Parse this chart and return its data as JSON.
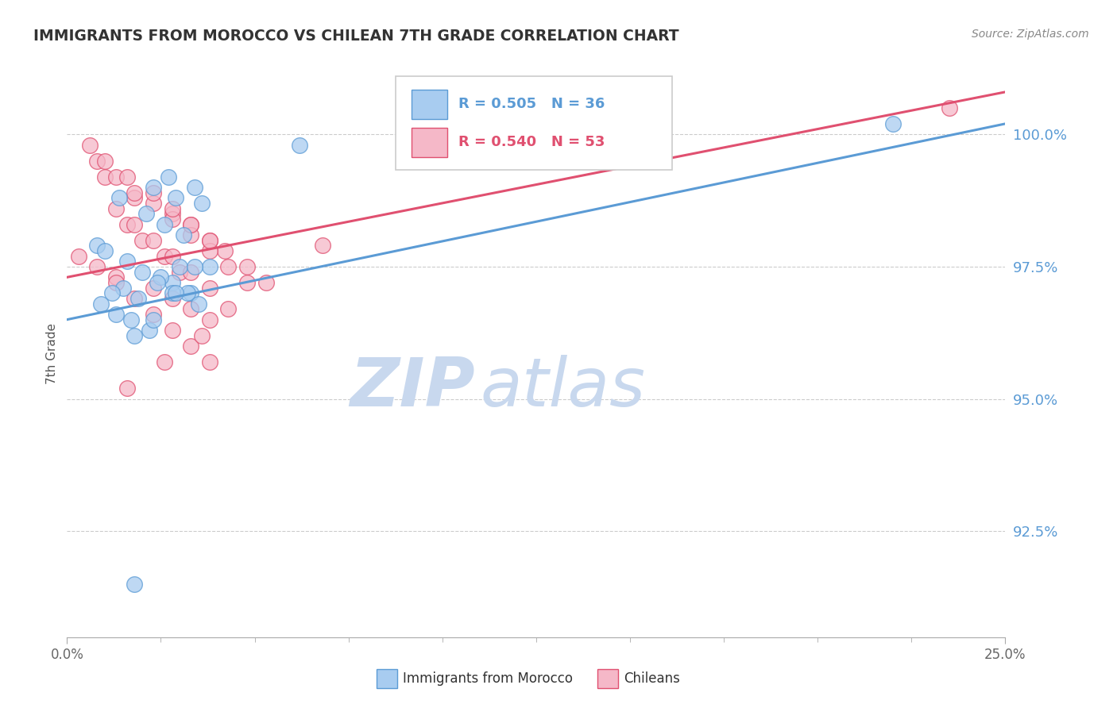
{
  "title": "IMMIGRANTS FROM MOROCCO VS CHILEAN 7TH GRADE CORRELATION CHART",
  "source": "Source: ZipAtlas.com",
  "ylabel": "7th Grade",
  "xlim": [
    0.0,
    25.0
  ],
  "ylim": [
    90.5,
    101.2
  ],
  "x_ticks": [
    0.0,
    25.0
  ],
  "x_tick_labels": [
    "0.0%",
    "25.0%"
  ],
  "y_ticks": [
    92.5,
    95.0,
    97.5,
    100.0
  ],
  "y_tick_labels": [
    "92.5%",
    "95.0%",
    "97.5%",
    "100.0%"
  ],
  "legend1_label": "R = 0.505   N = 36",
  "legend2_label": "R = 0.540   N = 53",
  "legend1_fill": "#A8CCF0",
  "legend2_fill": "#F5B8C8",
  "line1_color": "#5B9BD5",
  "line2_color": "#E05070",
  "watermark_zip": "ZIP",
  "watermark_atlas": "atlas",
  "watermark_color": "#C8D8EE",
  "grid_color": "#CCCCCC",
  "title_color": "#333333",
  "source_color": "#888888",
  "tick_color_y": "#5B9BD5",
  "tick_color_x": "#666666",
  "morocco_x": [
    1.4,
    2.7,
    2.3,
    2.9,
    3.4,
    3.6,
    2.1,
    2.6,
    3.1,
    0.8,
    1.0,
    1.6,
    2.0,
    2.8,
    3.3,
    2.5,
    3.0,
    1.5,
    1.2,
    1.9,
    2.4,
    3.2,
    0.9,
    1.3,
    1.7,
    2.2,
    2.8,
    3.5,
    3.8,
    1.8,
    2.3,
    2.9,
    3.4,
    6.2,
    22.0,
    1.8
  ],
  "morocco_y": [
    98.8,
    99.2,
    99.0,
    98.8,
    99.0,
    98.7,
    98.5,
    98.3,
    98.1,
    97.9,
    97.8,
    97.6,
    97.4,
    97.2,
    97.0,
    97.3,
    97.5,
    97.1,
    97.0,
    96.9,
    97.2,
    97.0,
    96.8,
    96.6,
    96.5,
    96.3,
    97.0,
    96.8,
    97.5,
    96.2,
    96.5,
    97.0,
    97.5,
    99.8,
    100.2,
    91.5
  ],
  "chilean_x": [
    1.0,
    1.8,
    2.8,
    3.3,
    3.8,
    4.2,
    4.8,
    1.3,
    2.3,
    2.8,
    3.3,
    3.8,
    0.8,
    1.3,
    1.8,
    2.3,
    2.8,
    3.3,
    3.8,
    4.3,
    4.8,
    1.6,
    2.0,
    2.6,
    3.0,
    0.6,
    1.0,
    1.6,
    2.3,
    2.8,
    3.3,
    3.8,
    1.3,
    1.8,
    2.3,
    2.8,
    3.3,
    3.8,
    0.8,
    1.3,
    1.8,
    2.3,
    2.8,
    3.3,
    3.8,
    6.8,
    5.3,
    4.3,
    3.6,
    2.6,
    1.6,
    0.3,
    23.5
  ],
  "chilean_y": [
    99.2,
    98.8,
    98.5,
    98.3,
    98.0,
    97.8,
    97.5,
    97.3,
    97.1,
    96.9,
    96.7,
    96.5,
    99.5,
    99.2,
    98.9,
    98.7,
    98.4,
    98.1,
    97.8,
    97.5,
    97.2,
    98.3,
    98.0,
    97.7,
    97.4,
    99.8,
    99.5,
    99.2,
    98.9,
    98.6,
    98.3,
    98.0,
    98.6,
    98.3,
    98.0,
    97.7,
    97.4,
    97.1,
    97.5,
    97.2,
    96.9,
    96.6,
    96.3,
    96.0,
    95.7,
    97.9,
    97.2,
    96.7,
    96.2,
    95.7,
    95.2,
    97.7,
    100.5
  ],
  "trendline1_x0": 0.0,
  "trendline1_y0": 96.5,
  "trendline1_x1": 25.0,
  "trendline1_y1": 100.2,
  "trendline2_x0": 0.0,
  "trendline2_y0": 97.3,
  "trendline2_x1": 25.0,
  "trendline2_y1": 100.8
}
